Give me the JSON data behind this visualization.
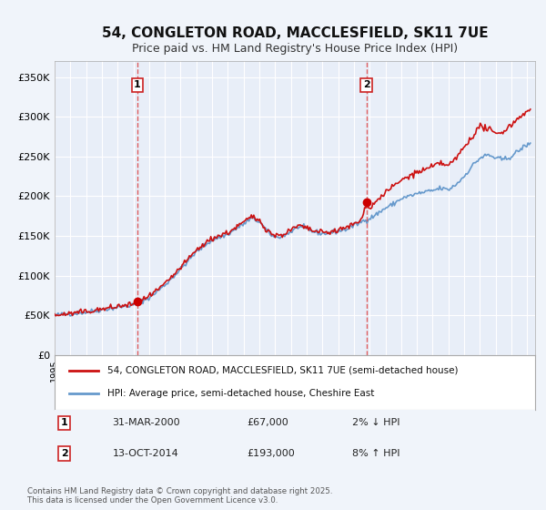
{
  "title": "54, CONGLETON ROAD, MACCLESFIELD, SK11 7UE",
  "subtitle": "Price paid vs. HM Land Registry's House Price Index (HPI)",
  "title_fontsize": 11,
  "subtitle_fontsize": 9,
  "bg_color": "#f0f4fa",
  "plot_bg_color": "#e8eef8",
  "grid_color": "#ffffff",
  "ylabel_vals": [
    0,
    50000,
    100000,
    150000,
    200000,
    250000,
    300000,
    350000
  ],
  "ylabel_labels": [
    "£0",
    "£50K",
    "£100K",
    "£150K",
    "£200K",
    "£250K",
    "£300K",
    "£350K"
  ],
  "xlim": [
    1995.0,
    2025.5
  ],
  "ylim": [
    0,
    370000
  ],
  "vline1_x": 2000.25,
  "vline2_x": 2014.79,
  "marker1_x": 2000.25,
  "marker1_y": 67000,
  "marker2_x": 2014.79,
  "marker2_y": 193000,
  "marker_color": "#cc0000",
  "vline_color": "#dd4444",
  "legend_label_red": "54, CONGLETON ROAD, MACCLESFIELD, SK11 7UE (semi-detached house)",
  "legend_label_blue": "HPI: Average price, semi-detached house, Cheshire East",
  "annotation_text": "Contains HM Land Registry data © Crown copyright and database right 2025.\nThis data is licensed under the Open Government Licence v3.0.",
  "box1_label": "1",
  "box1_date": "31-MAR-2000",
  "box1_price": "£67,000",
  "box1_hpi": "2% ↓ HPI",
  "box2_label": "2",
  "box2_date": "13-OCT-2014",
  "box2_price": "£193,000",
  "box2_hpi": "8% ↑ HPI",
  "red_line_color": "#cc1111",
  "blue_line_color": "#6699cc"
}
